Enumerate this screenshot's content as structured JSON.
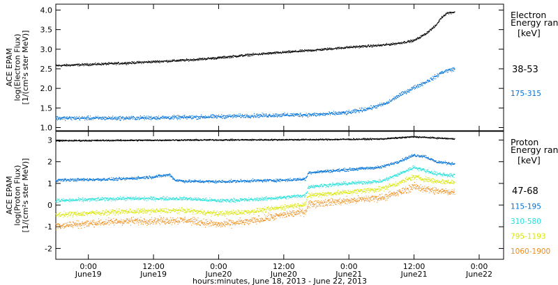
{
  "chart_data": {
    "type": "scatter",
    "x_axis": {
      "title": "hours:minutes, June 18, 2013 - June 22, 2013",
      "ticks": [
        {
          "t": 6.0,
          "time": "0:00",
          "date": "June19"
        },
        {
          "t": 18.0,
          "time": "12:00",
          "date": "June19"
        },
        {
          "t": 30.0,
          "time": "0:00",
          "date": "June20"
        },
        {
          "t": 42.0,
          "time": "12:00",
          "date": "June20"
        },
        {
          "t": 54.0,
          "time": "0:00",
          "date": "June21"
        },
        {
          "t": 66.0,
          "time": "12:00",
          "date": "June21"
        },
        {
          "t": 78.0,
          "time": "0:00",
          "date": "June22"
        }
      ],
      "range": [
        0,
        82.5
      ],
      "data_end": 73.5,
      "x_unit": "hours after 18:00 on June 18, 2013"
    },
    "panels": [
      {
        "name": "electron",
        "ylabel_lines": [
          "ACE EPAM",
          "log(Electron Flux)",
          "[1/(cm²s ster MeV)]"
        ],
        "ylim": [
          0.92,
          4.15
        ],
        "y_ticks": [
          1.0,
          1.5,
          2.0,
          2.5,
          3.0,
          3.5,
          4.0
        ],
        "legend_title_lines": [
          "Electron",
          "Energy ranges"
        ],
        "legend_unit": "[keV]",
        "series": [
          {
            "label": "38-53",
            "color": "#000000",
            "noise": 0.035,
            "x": [
              0,
              12,
              18,
              24,
              30,
              36,
              42,
              48,
              54,
              60,
              63,
              66,
              68,
              70,
              71,
              72,
              73.5
            ],
            "y": [
              2.58,
              2.64,
              2.68,
              2.72,
              2.78,
              2.86,
              2.92,
              2.98,
              3.05,
              3.1,
              3.15,
              3.22,
              3.38,
              3.6,
              3.8,
              3.92,
              3.95
            ]
          },
          {
            "label": "175-315",
            "color": "#0070d8",
            "noise": 0.06,
            "x": [
              0,
              12,
              24,
              36,
              42,
              48,
              54,
              58,
              61,
              63,
              66,
              68,
              70,
              71,
              72,
              73.5
            ],
            "y": [
              1.24,
              1.24,
              1.26,
              1.3,
              1.32,
              1.33,
              1.38,
              1.5,
              1.62,
              1.8,
              2.02,
              2.15,
              2.3,
              2.4,
              2.45,
              2.5
            ]
          }
        ]
      },
      {
        "name": "proton",
        "ylabel_lines": [
          "ACE EPAM",
          "log(Proton Flux)",
          "[1/(cm²s ster MeV)]"
        ],
        "ylim": [
          -2.5,
          3.4
        ],
        "y_ticks": [
          -2,
          -1,
          0,
          1,
          2,
          3
        ],
        "legend_title_lines": [
          "Proton",
          "Energy ranges"
        ],
        "legend_unit": "[keV]",
        "series": [
          {
            "label": "47-68",
            "color": "#000000",
            "noise": 0.04,
            "x": [
              0,
              24,
              48,
              60,
              66,
              73.5
            ],
            "y": [
              2.97,
              3.0,
              3.02,
              3.05,
              3.15,
              3.05
            ]
          },
          {
            "label": "115-195",
            "color": "#0070d8",
            "noise": 0.08,
            "x": [
              0,
              12,
              18,
              21,
              22,
              24,
              30,
              36,
              42,
              46,
              46.6,
              52,
              60,
              63,
              66,
              68,
              70,
              73.5
            ],
            "y": [
              1.15,
              1.2,
              1.3,
              1.4,
              1.15,
              1.1,
              1.08,
              1.12,
              1.15,
              1.2,
              1.5,
              1.6,
              1.75,
              2.0,
              2.3,
              2.25,
              2.0,
              1.9
            ]
          },
          {
            "label": "310-580",
            "color": "#22e0d8",
            "noise": 0.1,
            "x": [
              0,
              12,
              24,
              30,
              36,
              42,
              46,
              46.6,
              54,
              60,
              63,
              66,
              68,
              70,
              73.5
            ],
            "y": [
              0.2,
              0.3,
              0.3,
              0.2,
              0.25,
              0.35,
              0.45,
              0.85,
              1.0,
              1.1,
              1.4,
              1.75,
              1.6,
              1.45,
              1.35
            ]
          },
          {
            "label": "795-1193",
            "color": "#d8e600",
            "noise": 0.14,
            "x": [
              0,
              12,
              24,
              30,
              36,
              42,
              46,
              46.6,
              54,
              60,
              63,
              66,
              68,
              70,
              73.5
            ],
            "y": [
              -0.45,
              -0.3,
              -0.25,
              -0.4,
              -0.3,
              -0.1,
              0.05,
              0.45,
              0.6,
              0.75,
              1.0,
              1.3,
              1.2,
              1.1,
              1.05
            ]
          },
          {
            "label": "1060-1900",
            "color": "#ee8c18",
            "noise": 0.2,
            "x": [
              0,
              12,
              24,
              30,
              36,
              42,
              46,
              46.6,
              54,
              60,
              63,
              66,
              68,
              70,
              73.5
            ],
            "y": [
              -0.95,
              -0.75,
              -0.7,
              -0.9,
              -0.75,
              -0.45,
              -0.3,
              0.05,
              0.2,
              0.35,
              0.55,
              0.85,
              0.75,
              0.65,
              0.6
            ]
          }
        ]
      }
    ],
    "grid": false,
    "legend_position": "right"
  }
}
